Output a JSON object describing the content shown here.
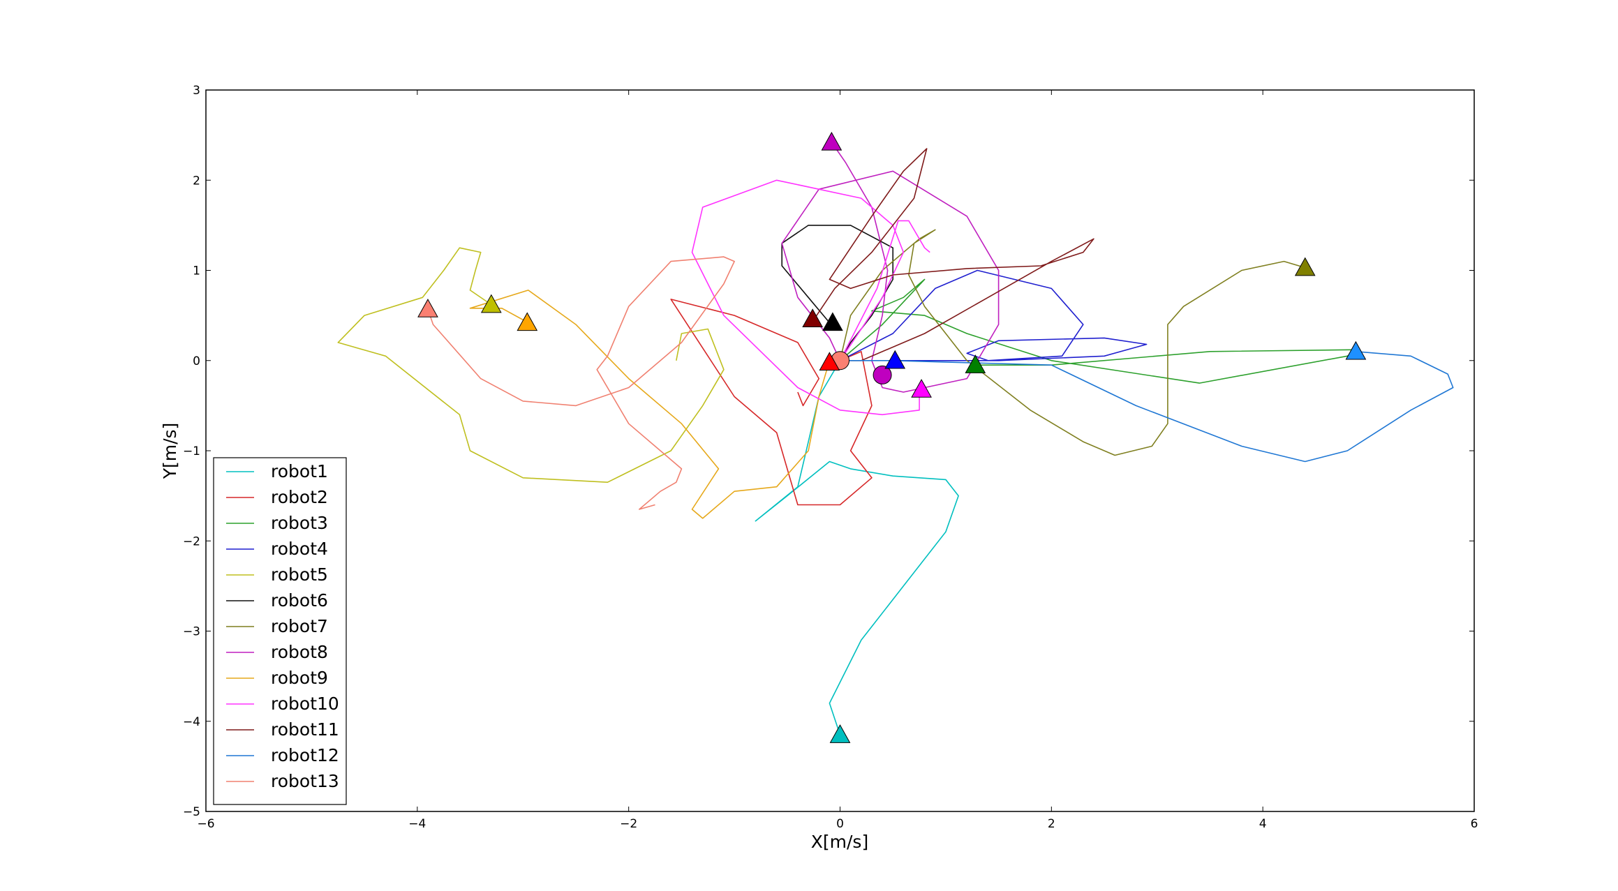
{
  "chart_data": {
    "type": "line",
    "title": "",
    "xlabel": "X[m/s]",
    "ylabel": "Y[m/s]",
    "xlim": [
      -6,
      6
    ],
    "ylim": [
      -5,
      3
    ],
    "xticks": [
      -6,
      -4,
      -2,
      0,
      2,
      4,
      6
    ],
    "yticks": [
      -5,
      -4,
      -3,
      -2,
      -1,
      0,
      1,
      2,
      3
    ],
    "xtick_labels": [
      "−6",
      "−4",
      "−2",
      "0",
      "2",
      "4",
      "6"
    ],
    "ytick_labels": [
      "−5",
      "−4",
      "−3",
      "−2",
      "−1",
      "0",
      "1",
      "2",
      "3"
    ],
    "grid": false,
    "legend_position": "lower-left",
    "start_marker": "circle",
    "end_marker": "triangle",
    "series": [
      {
        "name": "robot1",
        "color": "#00BFBF",
        "points": [
          [
            0.0,
            -4.15
          ],
          [
            -0.1,
            -3.8
          ],
          [
            0.2,
            -3.1
          ],
          [
            0.6,
            -2.5
          ],
          [
            1.0,
            -1.9
          ],
          [
            1.12,
            -1.5
          ],
          [
            1.0,
            -1.32
          ],
          [
            0.5,
            -1.28
          ],
          [
            0.1,
            -1.2
          ],
          [
            -0.1,
            -1.12
          ],
          [
            -0.5,
            -1.5
          ],
          [
            -0.8,
            -1.78
          ],
          [
            -0.4,
            -1.4
          ],
          [
            -0.3,
            -0.9
          ],
          [
            -0.2,
            -0.4
          ],
          [
            0.0,
            0.0
          ]
        ]
      },
      {
        "name": "robot2",
        "color": "#D62728",
        "points": [
          [
            0.0,
            0.0
          ],
          [
            0.2,
            0.1
          ],
          [
            0.3,
            -0.5
          ],
          [
            0.1,
            -1.0
          ],
          [
            0.3,
            -1.3
          ],
          [
            0.0,
            -1.6
          ],
          [
            -0.4,
            -1.6
          ],
          [
            -0.5,
            -1.2
          ],
          [
            -0.6,
            -0.8
          ],
          [
            -1.0,
            -0.4
          ],
          [
            -1.6,
            0.68
          ],
          [
            -1.0,
            0.5
          ],
          [
            -0.4,
            0.2
          ],
          [
            -0.2,
            -0.2
          ],
          [
            -0.35,
            -0.5
          ],
          [
            -0.4,
            -0.35
          ]
        ]
      },
      {
        "name": "robot3",
        "color": "#2CA02C",
        "points": [
          [
            0.0,
            0.0
          ],
          [
            0.4,
            0.4
          ],
          [
            0.8,
            0.9
          ],
          [
            0.6,
            0.7
          ],
          [
            0.3,
            0.55
          ],
          [
            0.8,
            0.5
          ],
          [
            1.2,
            0.3
          ],
          [
            2.0,
            0.0
          ],
          [
            3.4,
            -0.25
          ],
          [
            4.8,
            0.05
          ],
          [
            4.9,
            0.12
          ],
          [
            3.5,
            0.1
          ],
          [
            2.0,
            -0.05
          ],
          [
            1.3,
            -0.05
          ]
        ]
      },
      {
        "name": "robot4",
        "color": "#1F1FCF",
        "points": [
          [
            0.0,
            0.0
          ],
          [
            0.5,
            0.3
          ],
          [
            0.9,
            0.8
          ],
          [
            1.3,
            1.0
          ],
          [
            2.0,
            0.8
          ],
          [
            2.3,
            0.4
          ],
          [
            2.1,
            0.05
          ],
          [
            1.4,
            0.0
          ],
          [
            1.2,
            0.08
          ],
          [
            1.5,
            0.22
          ],
          [
            2.5,
            0.25
          ],
          [
            2.9,
            0.18
          ],
          [
            2.5,
            0.05
          ],
          [
            1.5,
            0.0
          ],
          [
            0.5,
            0.0
          ]
        ]
      },
      {
        "name": "robot5",
        "color": "#BFBF1F",
        "points": [
          [
            -3.3,
            0.62
          ],
          [
            -3.5,
            0.78
          ],
          [
            -3.45,
            1.0
          ],
          [
            -3.4,
            1.2
          ],
          [
            -3.6,
            1.25
          ],
          [
            -3.75,
            1.0
          ],
          [
            -3.95,
            0.7
          ],
          [
            -4.5,
            0.5
          ],
          [
            -4.75,
            0.2
          ],
          [
            -4.3,
            0.05
          ],
          [
            -3.6,
            -0.6
          ],
          [
            -3.5,
            -1.0
          ],
          [
            -3.0,
            -1.3
          ],
          [
            -2.2,
            -1.35
          ],
          [
            -1.6,
            -1.0
          ],
          [
            -1.3,
            -0.5
          ],
          [
            -1.1,
            -0.1
          ],
          [
            -1.25,
            0.35
          ],
          [
            -1.5,
            0.3
          ],
          [
            -1.55,
            0.0
          ]
        ]
      },
      {
        "name": "robot6",
        "color": "#111111",
        "points": [
          [
            -0.1,
            0.42
          ],
          [
            -0.3,
            0.7
          ],
          [
            -0.55,
            1.05
          ],
          [
            -0.55,
            1.3
          ],
          [
            -0.3,
            1.5
          ],
          [
            0.1,
            1.5
          ],
          [
            0.5,
            1.25
          ],
          [
            0.5,
            0.9
          ],
          [
            0.3,
            0.5
          ],
          [
            0.1,
            0.2
          ],
          [
            0.0,
            0.0
          ]
        ]
      },
      {
        "name": "robot7",
        "color": "#7F7F1F",
        "points": [
          [
            4.4,
            1.03
          ],
          [
            4.2,
            1.1
          ],
          [
            3.8,
            1.0
          ],
          [
            3.25,
            0.6
          ],
          [
            3.1,
            0.4
          ],
          [
            3.1,
            -0.7
          ],
          [
            2.95,
            -0.95
          ],
          [
            2.6,
            -1.05
          ],
          [
            2.3,
            -0.9
          ],
          [
            1.8,
            -0.55
          ],
          [
            1.2,
            0.0
          ],
          [
            0.8,
            0.6
          ],
          [
            0.65,
            0.95
          ],
          [
            0.7,
            1.3
          ],
          [
            0.9,
            1.45
          ],
          [
            0.75,
            1.35
          ],
          [
            0.4,
            1.0
          ],
          [
            0.1,
            0.5
          ],
          [
            0.0,
            0.0
          ]
        ]
      },
      {
        "name": "robot8",
        "color": "#BF1FBF",
        "points": [
          [
            -0.08,
            2.42
          ],
          [
            0.05,
            2.2
          ],
          [
            0.3,
            1.7
          ],
          [
            0.45,
            1.0
          ],
          [
            0.4,
            0.5
          ],
          [
            0.3,
            0.0
          ],
          [
            0.4,
            -0.3
          ],
          [
            0.6,
            -0.35
          ],
          [
            1.2,
            -0.2
          ],
          [
            1.5,
            0.4
          ],
          [
            1.5,
            1.0
          ],
          [
            1.2,
            1.6
          ],
          [
            0.5,
            2.1
          ],
          [
            -0.2,
            1.9
          ],
          [
            -0.55,
            1.3
          ],
          [
            -0.4,
            0.7
          ],
          [
            -0.1,
            0.25
          ],
          [
            0.0,
            0.0
          ]
        ]
      },
      {
        "name": "robot9",
        "color": "#E6A81A",
        "points": [
          [
            -2.95,
            0.42
          ],
          [
            -3.2,
            0.58
          ],
          [
            -3.5,
            0.58
          ],
          [
            -2.95,
            0.78
          ],
          [
            -2.5,
            0.4
          ],
          [
            -2.0,
            -0.2
          ],
          [
            -1.5,
            -0.7
          ],
          [
            -1.15,
            -1.2
          ],
          [
            -1.4,
            -1.65
          ],
          [
            -1.3,
            -1.75
          ],
          [
            -1.0,
            -1.45
          ],
          [
            -0.6,
            -1.4
          ],
          [
            -0.3,
            -1.0
          ],
          [
            -0.2,
            -0.4
          ],
          [
            -0.1,
            0.0
          ],
          [
            0.0,
            0.0
          ]
        ]
      },
      {
        "name": "robot10",
        "color": "#FF33FF",
        "points": [
          [
            0.75,
            -0.32
          ],
          [
            0.75,
            -0.55
          ],
          [
            0.4,
            -0.6
          ],
          [
            0.0,
            -0.55
          ],
          [
            -0.4,
            -0.3
          ],
          [
            -1.1,
            0.5
          ],
          [
            -1.4,
            1.2
          ],
          [
            -1.3,
            1.7
          ],
          [
            -0.6,
            2.0
          ],
          [
            0.2,
            1.8
          ],
          [
            0.5,
            1.5
          ],
          [
            0.6,
            1.2
          ],
          [
            0.4,
            0.7
          ],
          [
            0.0,
            0.0
          ],
          [
            0.35,
            0.8
          ],
          [
            0.55,
            1.55
          ],
          [
            0.65,
            1.55
          ],
          [
            0.8,
            1.25
          ],
          [
            0.85,
            1.2
          ]
        ]
      },
      {
        "name": "robot11",
        "color": "#7F1A1A",
        "points": [
          [
            -0.25,
            0.45
          ],
          [
            -0.05,
            0.8
          ],
          [
            0.3,
            1.2
          ],
          [
            0.7,
            1.8
          ],
          [
            0.82,
            2.35
          ],
          [
            0.6,
            2.1
          ],
          [
            0.3,
            1.6
          ],
          [
            -0.1,
            0.9
          ],
          [
            0.1,
            0.8
          ],
          [
            0.5,
            0.95
          ],
          [
            1.2,
            1.02
          ],
          [
            1.9,
            1.05
          ],
          [
            2.3,
            1.2
          ],
          [
            2.4,
            1.35
          ],
          [
            2.0,
            1.1
          ],
          [
            1.4,
            0.7
          ],
          [
            0.8,
            0.3
          ],
          [
            0.2,
            0.0
          ],
          [
            0.0,
            0.0
          ]
        ]
      },
      {
        "name": "robot12",
        "color": "#1F77D4",
        "points": [
          [
            4.88,
            0.1
          ],
          [
            5.4,
            0.05
          ],
          [
            5.75,
            -0.15
          ],
          [
            5.8,
            -0.3
          ],
          [
            5.4,
            -0.55
          ],
          [
            4.8,
            -1.0
          ],
          [
            4.4,
            -1.12
          ],
          [
            3.8,
            -0.95
          ],
          [
            2.8,
            -0.5
          ],
          [
            2.0,
            -0.05
          ],
          [
            0.5,
            0.0
          ],
          [
            0.0,
            0.0
          ]
        ]
      },
      {
        "name": "robot13",
        "color": "#F08070",
        "points": [
          [
            -3.9,
            0.57
          ],
          [
            -3.85,
            0.4
          ],
          [
            -3.4,
            -0.2
          ],
          [
            -3.0,
            -0.45
          ],
          [
            -2.5,
            -0.5
          ],
          [
            -2.0,
            -0.3
          ],
          [
            -1.5,
            0.2
          ],
          [
            -1.1,
            0.85
          ],
          [
            -1.0,
            1.1
          ],
          [
            -1.1,
            1.15
          ],
          [
            -1.6,
            1.1
          ],
          [
            -2.0,
            0.6
          ],
          [
            -2.2,
            0.05
          ],
          [
            -2.3,
            -0.1
          ],
          [
            -2.0,
            -0.7
          ],
          [
            -1.5,
            -1.2
          ],
          [
            -1.55,
            -1.35
          ],
          [
            -1.7,
            -1.45
          ],
          [
            -1.9,
            -1.65
          ],
          [
            -1.75,
            -1.6
          ]
        ]
      }
    ],
    "end_markers": [
      {
        "color": "#00BFBF",
        "x": 0.0,
        "y": -4.15
      },
      {
        "color": "#FF0000",
        "x": -0.1,
        "y": -0.02
      },
      {
        "color": "#008000",
        "x": 1.28,
        "y": -0.05
      },
      {
        "color": "#0000FF",
        "x": 0.52,
        "y": 0.0
      },
      {
        "color": "#BFBF00",
        "x": -3.3,
        "y": 0.62
      },
      {
        "color": "#000000",
        "x": -0.07,
        "y": 0.42
      },
      {
        "color": "#808000",
        "x": 4.4,
        "y": 1.03
      },
      {
        "color": "#BF00BF",
        "x": -0.08,
        "y": 2.42
      },
      {
        "color": "#FFA500",
        "x": -2.96,
        "y": 0.42
      },
      {
        "color": "#FF00FF",
        "x": 0.77,
        "y": -0.32
      },
      {
        "color": "#800000",
        "x": -0.26,
        "y": 0.46
      },
      {
        "color": "#1E90FF",
        "x": 4.88,
        "y": 0.1
      },
      {
        "color": "#FA8072",
        "x": -3.9,
        "y": 0.57
      }
    ],
    "start_markers": [
      {
        "color": "#BF00BF",
        "x": 0.4,
        "y": -0.16
      },
      {
        "color": "#FA8072",
        "x": 0.0,
        "y": 0.0
      }
    ]
  }
}
